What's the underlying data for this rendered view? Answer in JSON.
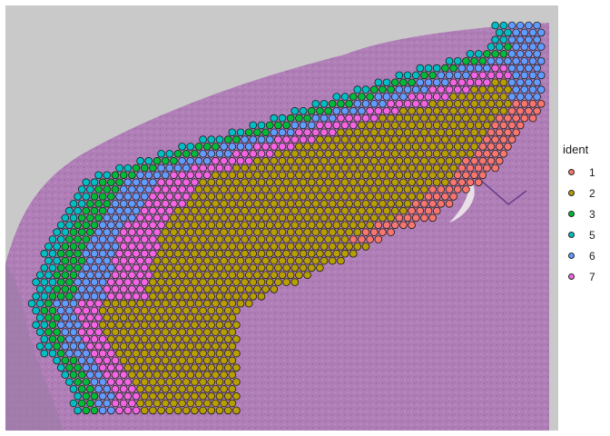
{
  "chart_data": {
    "type": "scatter",
    "title": "",
    "xlabel": "",
    "ylabel": "",
    "background": "H&E tissue image",
    "legend": {
      "title": "ident",
      "position": "right",
      "entries": [
        {
          "label": "1",
          "color": "#f8766d"
        },
        {
          "label": "2",
          "color": "#b79f00"
        },
        {
          "label": "3",
          "color": "#00ba38"
        },
        {
          "label": "5",
          "color": "#00bfc4"
        },
        {
          "label": "6",
          "color": "#619cff"
        },
        {
          "label": "7",
          "color": "#f564e3"
        }
      ]
    },
    "spot_layout": "hexagonal spot array",
    "cluster_layers_outer_to_inner": [
      "5",
      "3",
      "6",
      "7",
      "2",
      "1"
    ]
  }
}
